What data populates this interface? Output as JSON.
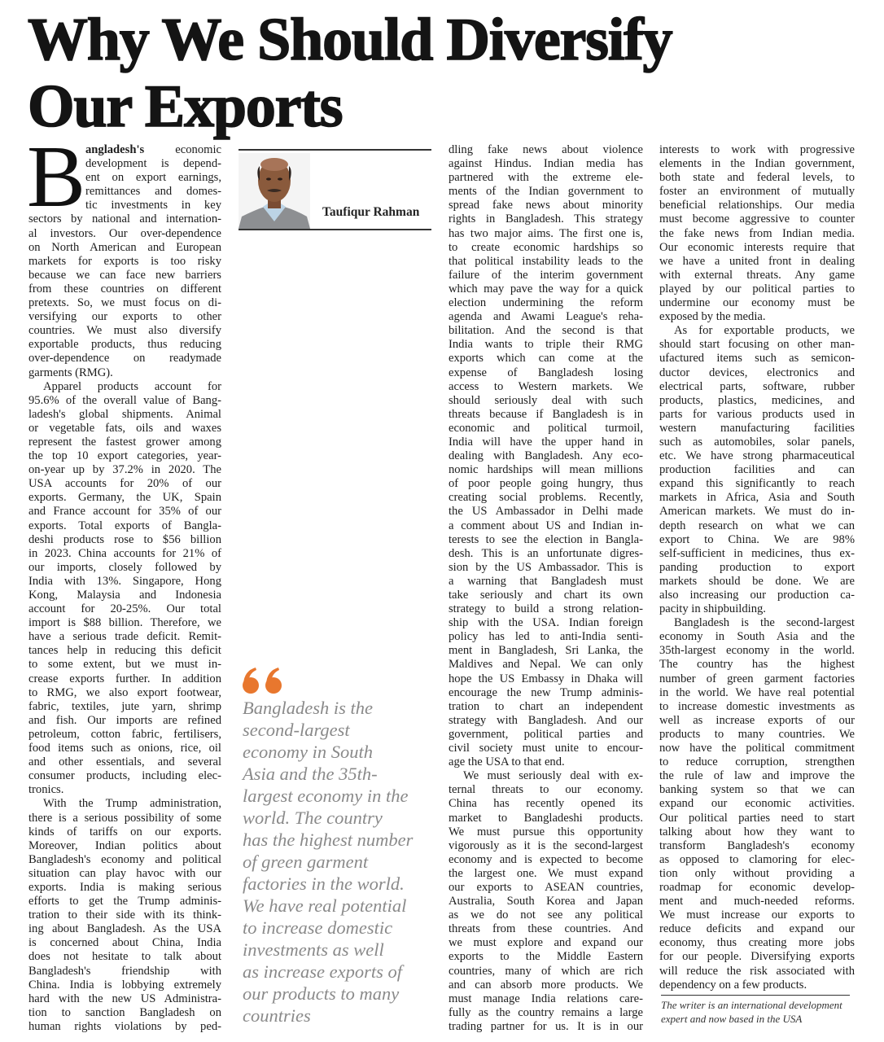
{
  "headline": {
    "line1": "Why We Should Diversify",
    "line2": "Our Exports"
  },
  "byline": {
    "author": "Taufiqur Rahman",
    "photo": "author-portrait"
  },
  "colors": {
    "quote_accent": "#e8772e",
    "pull_quote_text": "#8a8a8a"
  },
  "dropcap": {
    "letter": "B",
    "lead_word": "angladesh's",
    "first_line_rest": "economic"
  },
  "columns": {
    "col1": [
      [
        "development is depend-",
        "ent on export earnings,",
        "remittances and domes-",
        "tic investments in key",
        "sectors by national and internation-",
        "al investors. Our over-dependence",
        "on North American and European",
        "markets for exports is too risky",
        "because we can face new barriers",
        "from these countries on different",
        "pretexts. So, we must focus on di-",
        "versifying our exports to other",
        "countries. We must also diversify",
        "exportable products, thus reducing",
        "over-dependence on readymade",
        "garments (RMG)."
      ],
      [
        "Apparel products account for",
        "95.6% of the overall value of Bang-",
        "ladesh's global shipments. Animal",
        "or vegetable fats, oils and waxes",
        "represent the fastest grower among",
        "the top 10 export categories, year-",
        "on-year up by 37.2% in 2020. The",
        "USA accounts for 20% of our",
        "exports. Germany, the UK, Spain",
        "and France account for 35% of our",
        "exports. Total exports of Bangla-",
        "deshi products rose to $56 billion",
        "in 2023. China accounts for 21% of",
        "our imports, closely followed by",
        "India with 13%. Singapore, Hong",
        "Kong, Malaysia and Indonesia",
        "account for 20-25%. Our total",
        "import is $88 billion. Therefore, we",
        "have a serious trade deficit. Remit-",
        "tances help in reducing this deficit",
        "to some extent, but we must in-",
        "crease exports further. In addition",
        "to RMG, we also export footwear,",
        "fabric, textiles, jute yarn, shrimp",
        "and fish. Our imports are refined",
        "petroleum, cotton fabric, fertilisers,",
        "food items such as onions, rice, oil",
        "and other essentials, and several",
        "consumer products, including elec-",
        "tronics."
      ],
      [
        "With the Trump administration,",
        "there is a serious possibility of some",
        "kinds of tariffs on our exports.",
        "Moreover, Indian politics about",
        "Bangladesh's economy and political",
        "situation can play havoc with our",
        "exports. India is making serious",
        "efforts to get the Trump adminis-",
        "tration to their side with its think-",
        "ing about Bangladesh. As the USA",
        "is concerned about China, India",
        "does not hesitate to talk about",
        "Bangladesh's friendship with",
        "China. India is lobbying extremely",
        "hard with the new US Administra-",
        "tion to sanction Bangladesh on",
        "human rights violations by ped-"
      ]
    ],
    "col3": [
      [
        "dling fake news about violence",
        "against Hindus. Indian media has",
        "partnered with the extreme ele-",
        "ments of the Indian government to",
        "spread fake news about minority",
        "rights in Bangladesh. This strategy",
        "has two major aims. The first one is,",
        "to create economic hardships so",
        "that political instability leads to the",
        "failure of the interim government",
        "which may pave the way for a quick",
        "election undermining the reform",
        "agenda and Awami League's reha-",
        "bilitation. And the second is that",
        "India wants to triple their RMG",
        "exports which can come at the",
        "expense of Bangladesh losing",
        "access to Western markets. We",
        "should seriously deal with such",
        "threats because if Bangladesh is in",
        "economic and political turmoil,",
        "India will have the upper hand in",
        "dealing with Bangladesh. Any eco-",
        "nomic hardships will mean millions",
        "of poor people going hungry, thus",
        "creating social problems. Recently,",
        "the US Ambassador in Delhi made",
        "a comment about US and Indian in-",
        "terests to see the election in Bangla-",
        "desh. This is an unfortunate digres-",
        "sion by the US Ambassador. This is",
        "a warning that Bangladesh must",
        "take seriously and chart its own",
        "strategy to build a strong relation-",
        "ship with the USA. Indian foreign",
        "policy has led to anti-India senti-",
        "ment in Bangladesh, Sri Lanka, the",
        "Maldives and Nepal. We can only",
        "hope the US Embassy in Dhaka will",
        "encourage the new Trump adminis-",
        "tration to chart an independent",
        "strategy with Bangladesh. And our",
        "government, political parties and",
        "civil society must unite to encour-",
        "age the USA to that end."
      ],
      [
        "We must seriously deal with ex-",
        "ternal threats to our economy.",
        "China has recently opened its",
        "market to Bangladeshi products.",
        "We must pursue this opportunity",
        "vigorously as it is the second-largest",
        "economy and is expected to become",
        "the largest one. We must expand",
        "our exports to ASEAN countries,",
        "Australia, South Korea and Japan",
        "as we do not see any political",
        "threats from these countries. And",
        "we must explore and expand our",
        "exports to the Middle Eastern",
        "countries, many of which are rich",
        "and can absorb more products. We",
        "must manage India relations care-",
        "fully as the country remains a large",
        "trading partner for us. It is in our"
      ]
    ],
    "col4": [
      [
        "interests to work with progressive",
        "elements in the Indian government,",
        "both state and federal levels, to",
        "foster an environment of mutually",
        "beneficial relationships. Our media",
        "must become aggressive to counter",
        "the fake news from Indian media.",
        "Our economic interests require that",
        "we have a united front in dealing",
        "with external threats. Any game",
        "played by our political parties to",
        "undermine our economy must be",
        "exposed by the media."
      ],
      [
        "As for exportable products, we",
        "should start focusing on other man-",
        "ufactured items such as semicon-",
        "ductor devices, electronics and",
        "electrical parts, software, rubber",
        "products, plastics, medicines, and",
        "parts for various products used in",
        "western manufacturing facilities",
        "such as automobiles, solar panels,",
        "etc. We have strong pharmaceutical",
        "production facilities and can",
        "expand this significantly to reach",
        "markets in Africa, Asia and South",
        "American markets. We must do in-",
        "depth research on what we can",
        "export to China. We are 98%",
        "self-sufficient in medicines, thus ex-",
        "panding production to export",
        "markets should be done. We are",
        "also increasing our production ca-",
        "pacity in shipbuilding."
      ],
      [
        "Bangladesh is the second-largest",
        "economy in South Asia and the",
        "35th-largest economy in the world.",
        "The country has the highest",
        "number of green garment factories",
        "in the world. We have real potential",
        "to increase domestic investments as",
        "well as increase exports of our",
        "products to many countries. We",
        "now have the political commitment",
        "to reduce corruption, strengthen",
        "the rule of law and improve the",
        "banking system so that we can",
        "expand our economic activities.",
        "Our political parties need to start",
        "talking about how they want to",
        "transform Bangladesh's economy",
        "as opposed to clamoring for elec-",
        "tion only without providing a",
        "roadmap for economic develop-",
        "ment and much-needed reforms.",
        "We must increase our exports to",
        "reduce deficits and expand our",
        "economy, thus creating more jobs",
        "for our people. Diversifying exports",
        "will reduce the risk associated with",
        "dependency on a few products."
      ]
    ]
  },
  "pull_quote": {
    "icon": "quote-mark-icon",
    "lines": [
      "Bangladesh is the",
      "second-largest",
      "economy in South",
      "Asia and the 35th-",
      "largest economy in the",
      "world. The country",
      "has the highest number",
      "of green garment",
      "factories in the world.",
      "We have real potential",
      "to increase domestic",
      "investments as well",
      "as increase exports of",
      "our products to many",
      "countries"
    ]
  },
  "footer": {
    "line1": "The writer is an international development",
    "line2": "expert and now based in the USA"
  }
}
